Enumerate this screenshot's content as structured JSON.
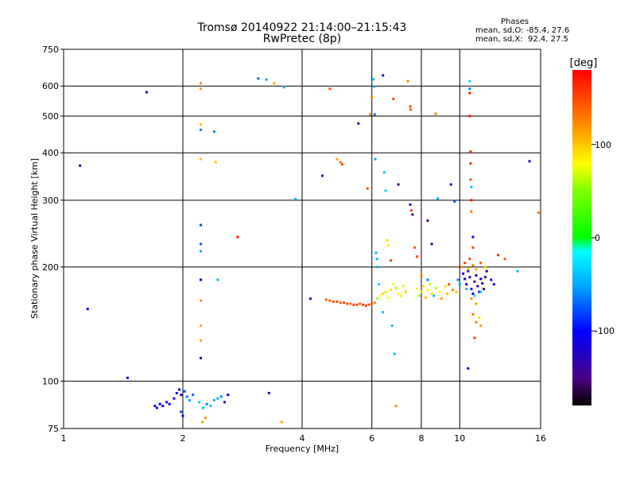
{
  "chart_data": {
    "type": "scatter",
    "title": "Tromsø 20140922 21:14:00–21:15:43",
    "subtitle": "RwPretec (8p)",
    "xlabel": "Frequency [MHz]",
    "ylabel": "Stationary phase Virtual Height [km]",
    "x_scale": "log",
    "y_scale": "log",
    "xlim": [
      1,
      16
    ],
    "ylim": [
      75,
      750
    ],
    "x_ticks": [
      1,
      2,
      4,
      6,
      8,
      10,
      16
    ],
    "y_ticks": [
      75,
      100,
      200,
      300,
      400,
      500,
      600,
      750
    ],
    "grid": true,
    "stats": {
      "heading": "Phases",
      "o_line": "mean, sd,O: -85.4, 27.6",
      "x_line": "mean, sd,X:  92.4, 27.5"
    },
    "colorbar": {
      "label": "[deg]",
      "range": [
        -180,
        180
      ],
      "ticks": [
        100,
        0,
        -100
      ]
    },
    "series": [
      {
        "color_by": "phase_deg",
        "points": [
          [
            1.1,
            370,
            -120
          ],
          [
            1.15,
            155,
            -110
          ],
          [
            1.45,
            102,
            -110
          ],
          [
            1.62,
            578,
            -120
          ],
          [
            1.7,
            86,
            -110
          ],
          [
            1.72,
            85,
            -105
          ],
          [
            1.75,
            87,
            -100
          ],
          [
            1.78,
            86,
            -115
          ],
          [
            1.82,
            88,
            -110
          ],
          [
            1.85,
            87,
            -100
          ],
          [
            1.9,
            90,
            -110
          ],
          [
            1.93,
            93,
            -105
          ],
          [
            1.96,
            95,
            -120
          ],
          [
            1.98,
            92,
            -115
          ],
          [
            2.02,
            94,
            -80
          ],
          [
            2.05,
            91,
            -60
          ],
          [
            2.08,
            89,
            -50
          ],
          [
            2.12,
            92,
            -70
          ],
          [
            2.2,
            88,
            -30
          ],
          [
            2.25,
            85,
            -40
          ],
          [
            2.3,
            87,
            -60
          ],
          [
            2.35,
            86,
            -40
          ],
          [
            2.4,
            89,
            -45
          ],
          [
            2.45,
            90,
            -50
          ],
          [
            2.5,
            91,
            -60
          ],
          [
            2.55,
            88,
            -110
          ],
          [
            2.6,
            92,
            -100
          ],
          [
            1.98,
            83,
            -80
          ],
          [
            2.0,
            81,
            -100
          ],
          [
            2.24,
            78,
            110
          ],
          [
            2.28,
            80,
            120
          ],
          [
            2.22,
            610,
            120
          ],
          [
            2.22,
            590,
            110
          ],
          [
            2.22,
            475,
            100
          ],
          [
            2.22,
            460,
            -60
          ],
          [
            2.22,
            385,
            100
          ],
          [
            2.22,
            258,
            -80
          ],
          [
            2.22,
            230,
            -70
          ],
          [
            2.22,
            220,
            -50
          ],
          [
            2.22,
            185,
            -120
          ],
          [
            2.22,
            163,
            120
          ],
          [
            2.22,
            140,
            110
          ],
          [
            2.22,
            128,
            110
          ],
          [
            2.22,
            115,
            -120
          ],
          [
            2.4,
            455,
            -60
          ],
          [
            2.42,
            378,
            100
          ],
          [
            2.45,
            185,
            -40
          ],
          [
            2.75,
            240,
            170
          ],
          [
            3.1,
            628,
            -70
          ],
          [
            3.25,
            624,
            -50
          ],
          [
            3.4,
            610,
            110
          ],
          [
            3.6,
            596,
            -40
          ],
          [
            3.85,
            302,
            -50
          ],
          [
            3.3,
            93,
            -120
          ],
          [
            3.55,
            78,
            110
          ],
          [
            4.2,
            165,
            -120
          ],
          [
            4.5,
            348,
            -140
          ],
          [
            4.7,
            590,
            140
          ],
          [
            4.9,
            385,
            110
          ],
          [
            5.0,
            378,
            130
          ],
          [
            5.05,
            373,
            150
          ],
          [
            5.55,
            478,
            -120
          ],
          [
            5.85,
            322,
            150
          ],
          [
            5.95,
            505,
            120
          ],
          [
            6.0,
            560,
            120
          ],
          [
            6.05,
            625,
            -40
          ],
          [
            6.08,
            598,
            -50
          ],
          [
            6.1,
            505,
            -60
          ],
          [
            6.12,
            385,
            -50
          ],
          [
            6.15,
            218,
            -50
          ],
          [
            6.18,
            210,
            -40
          ],
          [
            6.2,
            200,
            -50
          ],
          [
            6.25,
            180,
            -30
          ],
          [
            6.4,
            640,
            -120
          ],
          [
            6.45,
            355,
            -40
          ],
          [
            6.5,
            318,
            -30
          ],
          [
            6.55,
            235,
            90
          ],
          [
            6.6,
            228,
            90
          ],
          [
            6.7,
            208,
            150
          ],
          [
            6.8,
            555,
            150
          ],
          [
            6.85,
            118,
            -40
          ],
          [
            6.9,
            86,
            120
          ],
          [
            6.75,
            140,
            -40
          ],
          [
            6.4,
            152,
            -40
          ],
          [
            7.0,
            330,
            -140
          ],
          [
            7.4,
            618,
            120
          ],
          [
            7.5,
            530,
            150
          ],
          [
            7.52,
            520,
            140
          ],
          [
            7.5,
            292,
            -130
          ],
          [
            7.55,
            282,
            150
          ],
          [
            7.6,
            275,
            -140
          ],
          [
            7.7,
            225,
            140
          ],
          [
            7.8,
            213,
            150
          ],
          [
            8.3,
            265,
            -150
          ],
          [
            8.5,
            230,
            -130
          ],
          [
            8.7,
            507,
            120
          ],
          [
            8.8,
            303,
            -50
          ],
          [
            9.5,
            330,
            -120
          ],
          [
            9.7,
            298,
            -80
          ],
          [
            10.6,
            618,
            -30
          ],
          [
            10.6,
            590,
            -60
          ],
          [
            10.6,
            575,
            170
          ],
          [
            10.6,
            500,
            170
          ],
          [
            10.65,
            403,
            160
          ],
          [
            10.65,
            375,
            160
          ],
          [
            10.65,
            340,
            140
          ],
          [
            10.7,
            325,
            -40
          ],
          [
            10.7,
            300,
            170
          ],
          [
            10.7,
            280,
            130
          ],
          [
            10.8,
            240,
            -100
          ],
          [
            10.8,
            225,
            150
          ],
          [
            10.5,
            108,
            -120
          ],
          [
            10.9,
            130,
            150
          ],
          [
            11.0,
            143,
            120
          ],
          [
            11.2,
            147,
            90
          ],
          [
            11.3,
            140,
            110
          ],
          [
            12.5,
            215,
            160
          ],
          [
            13.0,
            210,
            140
          ],
          [
            14.0,
            195,
            -40
          ],
          [
            15.0,
            380,
            -120
          ],
          [
            15.8,
            278,
            130
          ],
          [
            4.6,
            164,
            140
          ],
          [
            4.7,
            163,
            150
          ],
          [
            4.8,
            162,
            145
          ],
          [
            4.9,
            162,
            150
          ],
          [
            5.0,
            161,
            140
          ],
          [
            5.1,
            161,
            155
          ],
          [
            5.2,
            160,
            150
          ],
          [
            5.3,
            160,
            140
          ],
          [
            5.4,
            159,
            150
          ],
          [
            5.5,
            159,
            145
          ],
          [
            5.6,
            160,
            140
          ],
          [
            5.7,
            159,
            150
          ],
          [
            5.8,
            158,
            155
          ],
          [
            5.9,
            159,
            145
          ],
          [
            6.0,
            160,
            140
          ],
          [
            6.1,
            161,
            120
          ],
          [
            6.2,
            165,
            60
          ],
          [
            6.3,
            168,
            80
          ],
          [
            6.4,
            170,
            90
          ],
          [
            6.5,
            172,
            70
          ],
          [
            6.6,
            166,
            80
          ],
          [
            6.7,
            174,
            90
          ],
          [
            6.8,
            180,
            75
          ],
          [
            6.9,
            176,
            60
          ],
          [
            7.0,
            170,
            80
          ],
          [
            7.1,
            168,
            90
          ],
          [
            7.2,
            178,
            70
          ],
          [
            7.3,
            172,
            100
          ],
          [
            7.8,
            175,
            80
          ],
          [
            7.9,
            168,
            60
          ],
          [
            8.0,
            172,
            70
          ],
          [
            8.1,
            178,
            90
          ],
          [
            8.2,
            166,
            100
          ],
          [
            8.3,
            174,
            80
          ],
          [
            8.4,
            180,
            70
          ],
          [
            8.5,
            170,
            90
          ],
          [
            8.6,
            168,
            -40
          ],
          [
            8.7,
            176,
            60
          ],
          [
            8.9,
            172,
            80
          ],
          [
            9.0,
            165,
            110
          ],
          [
            9.2,
            178,
            90
          ],
          [
            9.3,
            170,
            100
          ],
          [
            8.0,
            190,
            120
          ],
          [
            8.3,
            185,
            -60
          ],
          [
            9.4,
            180,
            150
          ],
          [
            9.6,
            174,
            120
          ],
          [
            9.8,
            172,
            100
          ],
          [
            10.2,
            192,
            -130
          ],
          [
            10.3,
            186,
            -120
          ],
          [
            10.4,
            180,
            -100
          ],
          [
            10.5,
            195,
            -140
          ],
          [
            10.6,
            188,
            -130
          ],
          [
            10.7,
            175,
            -120
          ],
          [
            10.8,
            170,
            -110
          ],
          [
            10.9,
            183,
            -140
          ],
          [
            11.0,
            190,
            -120
          ],
          [
            11.1,
            178,
            -130
          ],
          [
            11.2,
            172,
            -110
          ],
          [
            11.3,
            186,
            -100
          ],
          [
            11.4,
            181,
            -120
          ],
          [
            11.5,
            175,
            -130
          ],
          [
            11.6,
            188,
            -140
          ],
          [
            11.7,
            195,
            -120
          ],
          [
            12.0,
            185,
            -130
          ],
          [
            12.2,
            180,
            -120
          ],
          [
            10.1,
            200,
            120
          ],
          [
            10.3,
            205,
            150
          ],
          [
            10.5,
            198,
            90
          ],
          [
            10.8,
            202,
            130
          ],
          [
            11.0,
            197,
            110
          ],
          [
            11.3,
            205,
            140
          ],
          [
            11.6,
            200,
            100
          ],
          [
            10.4,
            175,
            -40
          ],
          [
            10.9,
            168,
            -30
          ],
          [
            11.3,
            172,
            -40
          ],
          [
            10.0,
            180,
            -50
          ],
          [
            9.9,
            185,
            -60
          ],
          [
            10.6,
            210,
            150
          ],
          [
            10.7,
            165,
            120
          ],
          [
            11.0,
            160,
            110
          ],
          [
            10.8,
            150,
            130
          ]
        ]
      }
    ]
  }
}
